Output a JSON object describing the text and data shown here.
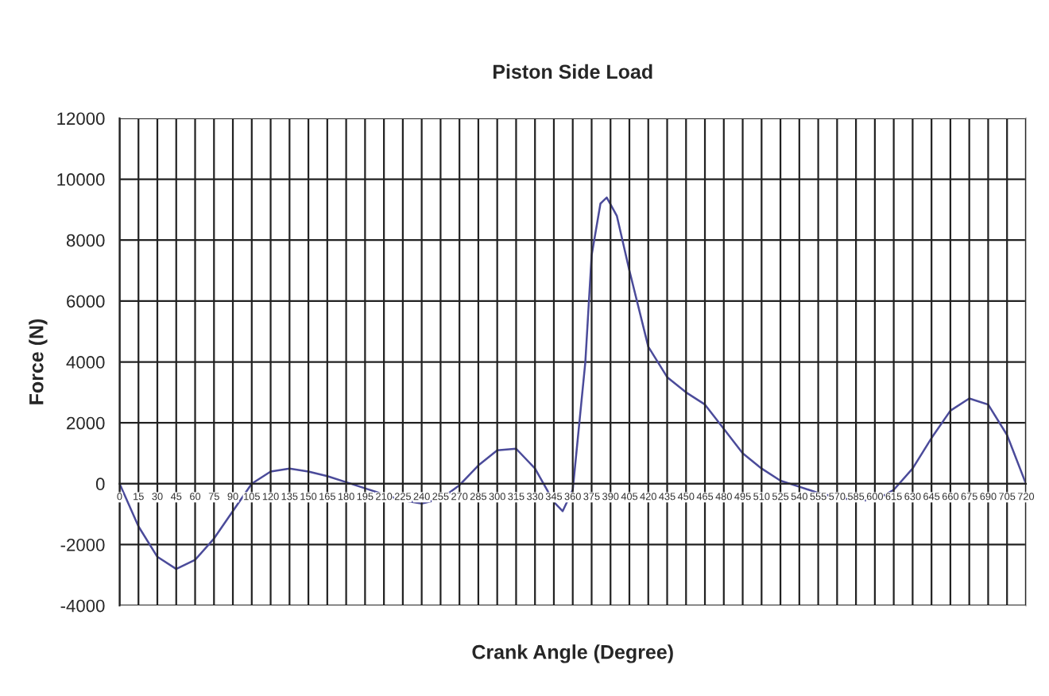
{
  "chart_data": {
    "type": "line",
    "title": "Piston Side Load",
    "xlabel": "Crank Angle (Degree)",
    "ylabel": "Force (N)",
    "x": [
      0,
      15,
      30,
      45,
      60,
      75,
      90,
      105,
      120,
      135,
      150,
      165,
      180,
      195,
      210,
      225,
      240,
      255,
      270,
      285,
      300,
      315,
      330,
      345,
      352,
      360,
      370,
      375,
      382,
      387,
      395,
      405,
      420,
      435,
      450,
      465,
      480,
      495,
      510,
      525,
      540,
      555,
      570,
      585,
      600,
      615,
      630,
      645,
      660,
      675,
      690,
      705,
      720
    ],
    "series": [
      {
        "color": "#4b4b9a",
        "values": [
          0,
          -1400,
          -2400,
          -2800,
          -2500,
          -1800,
          -900,
          0,
          400,
          500,
          400,
          250,
          50,
          -150,
          -350,
          -550,
          -650,
          -500,
          -50,
          600,
          1100,
          1150,
          500,
          -600,
          -900,
          -200,
          4000,
          7500,
          9200,
          9400,
          8800,
          7000,
          4500,
          3500,
          3000,
          2600,
          1800,
          1000,
          500,
          100,
          -100,
          -300,
          -450,
          -550,
          -550,
          -200,
          500,
          1500,
          2400,
          2800,
          2600,
          1600,
          0
        ]
      }
    ],
    "xlim": [
      0,
      720
    ],
    "xticks": [
      0,
      15,
      30,
      45,
      60,
      75,
      90,
      105,
      120,
      135,
      150,
      165,
      180,
      195,
      210,
      225,
      240,
      255,
      270,
      285,
      300,
      315,
      330,
      345,
      360,
      375,
      390,
      405,
      420,
      435,
      450,
      465,
      480,
      495,
      510,
      525,
      540,
      555,
      570,
      585,
      600,
      615,
      630,
      645,
      660,
      675,
      690,
      705,
      720
    ],
    "ylim": [
      -4000,
      12000
    ],
    "yticks": [
      -4000,
      -2000,
      0,
      2000,
      4000,
      6000,
      8000,
      10000,
      12000
    ],
    "grid": true,
    "marker": "none",
    "line_style": "solid"
  }
}
